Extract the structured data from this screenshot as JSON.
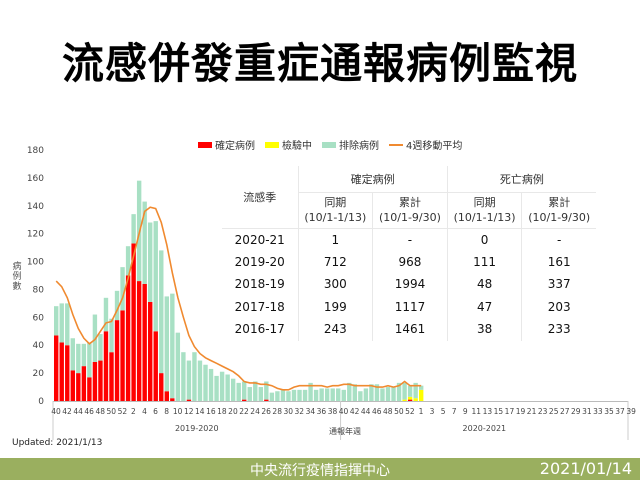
{
  "title": "流感併發重症通報病例監視",
  "legend": [
    {
      "label": "確定病例",
      "color": "#ff0000",
      "kind": "bar"
    },
    {
      "label": "檢驗中",
      "color": "#ffff00",
      "kind": "bar"
    },
    {
      "label": "排除病例",
      "color": "#a8e0c4",
      "kind": "bar"
    },
    {
      "label": "4週移動平均",
      "color": "#f08a30",
      "kind": "line"
    }
  ],
  "y_axis_label": "病例數",
  "x_axis_label": "通報年週",
  "updated": "Updated: 2021/1/13",
  "footer": {
    "center": "中央流行疫情指揮中心",
    "date": "2021/01/14"
  },
  "table": {
    "season_header": "流感季",
    "groups": [
      "確定病例",
      "死亡病例"
    ],
    "sub_headers": [
      {
        "name": "同期",
        "range": "(10/1-1/13)"
      },
      {
        "name": "累計",
        "range": "(10/1-9/30)"
      },
      {
        "name": "同期",
        "range": "(10/1-1/13)"
      },
      {
        "name": "累計",
        "range": "(10/1-9/30)"
      }
    ],
    "rows": [
      {
        "season": "2020-21",
        "confirmed_period": "1",
        "confirmed_total": "-",
        "death_period": "0",
        "death_total": "-"
      },
      {
        "season": "2019-20",
        "confirmed_period": "712",
        "confirmed_total": "968",
        "death_period": "111",
        "death_total": "161"
      },
      {
        "season": "2018-19",
        "confirmed_period": "300",
        "confirmed_total": "1994",
        "death_period": "48",
        "death_total": "337"
      },
      {
        "season": "2017-18",
        "confirmed_period": "199",
        "confirmed_total": "1117",
        "death_period": "47",
        "death_total": "203"
      },
      {
        "season": "2016-17",
        "confirmed_period": "243",
        "confirmed_total": "1461",
        "death_period": "38",
        "death_total": "233"
      }
    ]
  },
  "chart_data": {
    "type": "bar",
    "title": "流感併發重症通報病例監視",
    "xlabel": "通報年週",
    "ylabel": "病例數",
    "ylim": [
      0,
      180
    ],
    "yticks": [
      0,
      20,
      40,
      60,
      80,
      100,
      120,
      140,
      160,
      180
    ],
    "stacked": true,
    "season_labels": [
      "2019-2020",
      "2020-2021"
    ],
    "x_tick_labels": [
      "40",
      "42",
      "44",
      "46",
      "48",
      "50",
      "52",
      "2",
      "4",
      "6",
      "8",
      "10",
      "12",
      "14",
      "16",
      "18",
      "20",
      "22",
      "24",
      "26",
      "28",
      "30",
      "32",
      "34",
      "36",
      "38",
      "40",
      "42",
      "44",
      "46",
      "48",
      "50",
      "52",
      "1",
      "3",
      "5",
      "7",
      "9",
      "11",
      "13",
      "15",
      "17",
      "19",
      "21",
      "23",
      "25",
      "27",
      "29",
      "31",
      "33",
      "35",
      "37",
      "39"
    ],
    "categories": [
      "2019-40",
      "2019-41",
      "2019-42",
      "2019-43",
      "2019-44",
      "2019-45",
      "2019-46",
      "2019-47",
      "2019-48",
      "2019-49",
      "2019-50",
      "2019-51",
      "2019-52",
      "2020-1",
      "2020-2",
      "2020-3",
      "2020-4",
      "2020-5",
      "2020-6",
      "2020-7",
      "2020-8",
      "2020-9",
      "2020-10",
      "2020-11",
      "2020-12",
      "2020-13",
      "2020-14",
      "2020-15",
      "2020-16",
      "2020-17",
      "2020-18",
      "2020-19",
      "2020-20",
      "2020-21",
      "2020-22",
      "2020-23",
      "2020-24",
      "2020-25",
      "2020-26",
      "2020-27",
      "2020-28",
      "2020-29",
      "2020-30",
      "2020-31",
      "2020-32",
      "2020-33",
      "2020-34",
      "2020-35",
      "2020-36",
      "2020-37",
      "2020-38",
      "2020-39",
      "2020-40",
      "2020-41",
      "2020-42",
      "2020-43",
      "2020-44",
      "2020-45",
      "2020-46",
      "2020-47",
      "2020-48",
      "2020-49",
      "2020-50",
      "2020-51",
      "2020-52",
      "2020-53",
      "2021-1"
    ],
    "series": [
      {
        "name": "確定病例",
        "color": "#ff0000",
        "values": [
          47,
          42,
          40,
          22,
          20,
          25,
          17,
          28,
          29,
          50,
          35,
          58,
          65,
          90,
          113,
          86,
          84,
          71,
          50,
          20,
          7,
          2,
          0,
          0,
          1,
          0,
          0,
          0,
          0,
          0,
          0,
          0,
          0,
          0,
          1,
          0,
          0,
          0,
          1,
          0,
          0,
          0,
          0,
          0,
          0,
          0,
          0,
          0,
          0,
          0,
          0,
          0,
          0,
          0,
          0,
          0,
          0,
          0,
          0,
          0,
          0,
          0,
          0,
          0,
          1,
          0,
          0
        ]
      },
      {
        "name": "檢驗中",
        "color": "#ffff00",
        "values": [
          0,
          0,
          0,
          0,
          0,
          0,
          0,
          0,
          0,
          0,
          0,
          0,
          0,
          0,
          0,
          0,
          0,
          0,
          0,
          0,
          0,
          0,
          0,
          0,
          0,
          0,
          0,
          0,
          0,
          0,
          0,
          0,
          0,
          0,
          0,
          0,
          0,
          0,
          0,
          0,
          0,
          0,
          0,
          0,
          0,
          0,
          0,
          0,
          0,
          0,
          0,
          0,
          0,
          0,
          0,
          0,
          0,
          0,
          0,
          0,
          0,
          0,
          0,
          1,
          2,
          2,
          8
        ]
      },
      {
        "name": "排除病例",
        "color": "#a8e0c4",
        "values": [
          21,
          28,
          30,
          23,
          21,
          16,
          25,
          34,
          19,
          24,
          24,
          21,
          31,
          21,
          21,
          72,
          59,
          57,
          79,
          88,
          68,
          75,
          49,
          35,
          28,
          35,
          29,
          26,
          23,
          18,
          21,
          19,
          16,
          13,
          13,
          10,
          14,
          10,
          13,
          6,
          7,
          8,
          7,
          8,
          8,
          8,
          13,
          8,
          9,
          9,
          9,
          9,
          8,
          13,
          12,
          7,
          9,
          12,
          12,
          9,
          10,
          10,
          13,
          12,
          8,
          11,
          3
        ]
      },
      {
        "name": "4週移動平均",
        "color": "#f08a30",
        "type": "line",
        "values": [
          86,
          82,
          74,
          62,
          52,
          45,
          41,
          44,
          50,
          56,
          57,
          65,
          74,
          88,
          104,
          120,
          136,
          139,
          138,
          128,
          112,
          92,
          74,
          60,
          47,
          39,
          34,
          31,
          29,
          27,
          25,
          23,
          21,
          18,
          14,
          13,
          13,
          12,
          12,
          11,
          9,
          8,
          8,
          10,
          11,
          11,
          11,
          11,
          11,
          10,
          11,
          11,
          12,
          12,
          11,
          11,
          11,
          11,
          10,
          10,
          11,
          10,
          11,
          14,
          11,
          11,
          11
        ]
      }
    ]
  }
}
